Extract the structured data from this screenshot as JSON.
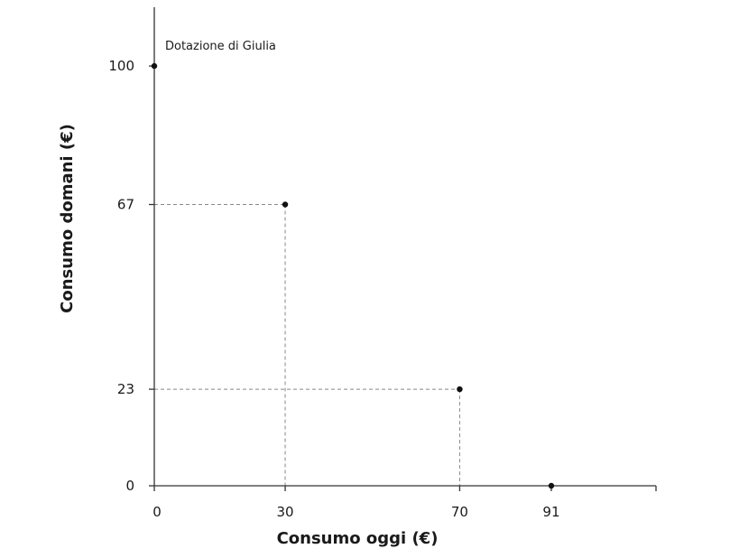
{
  "chart_data": {
    "type": "scatter",
    "title": "",
    "xlabel": "Consumo oggi (€)",
    "ylabel": "Consumo domani (€)",
    "xlim": [
      0,
      115
    ],
    "ylim": [
      0,
      114
    ],
    "grid": false,
    "x_ticks": [
      0,
      30,
      70,
      91
    ],
    "y_ticks": [
      0,
      23,
      67,
      100
    ],
    "points": [
      {
        "x": 0,
        "y": 100
      },
      {
        "x": 30,
        "y": 67
      },
      {
        "x": 70,
        "y": 23
      },
      {
        "x": 91,
        "y": 0
      }
    ],
    "guides": [
      {
        "x": 30,
        "y": 67
      },
      {
        "x": 70,
        "y": 23
      }
    ],
    "annotations": [
      {
        "text": "Dotazione di Giulia",
        "x": 0,
        "y": 100
      }
    ]
  }
}
